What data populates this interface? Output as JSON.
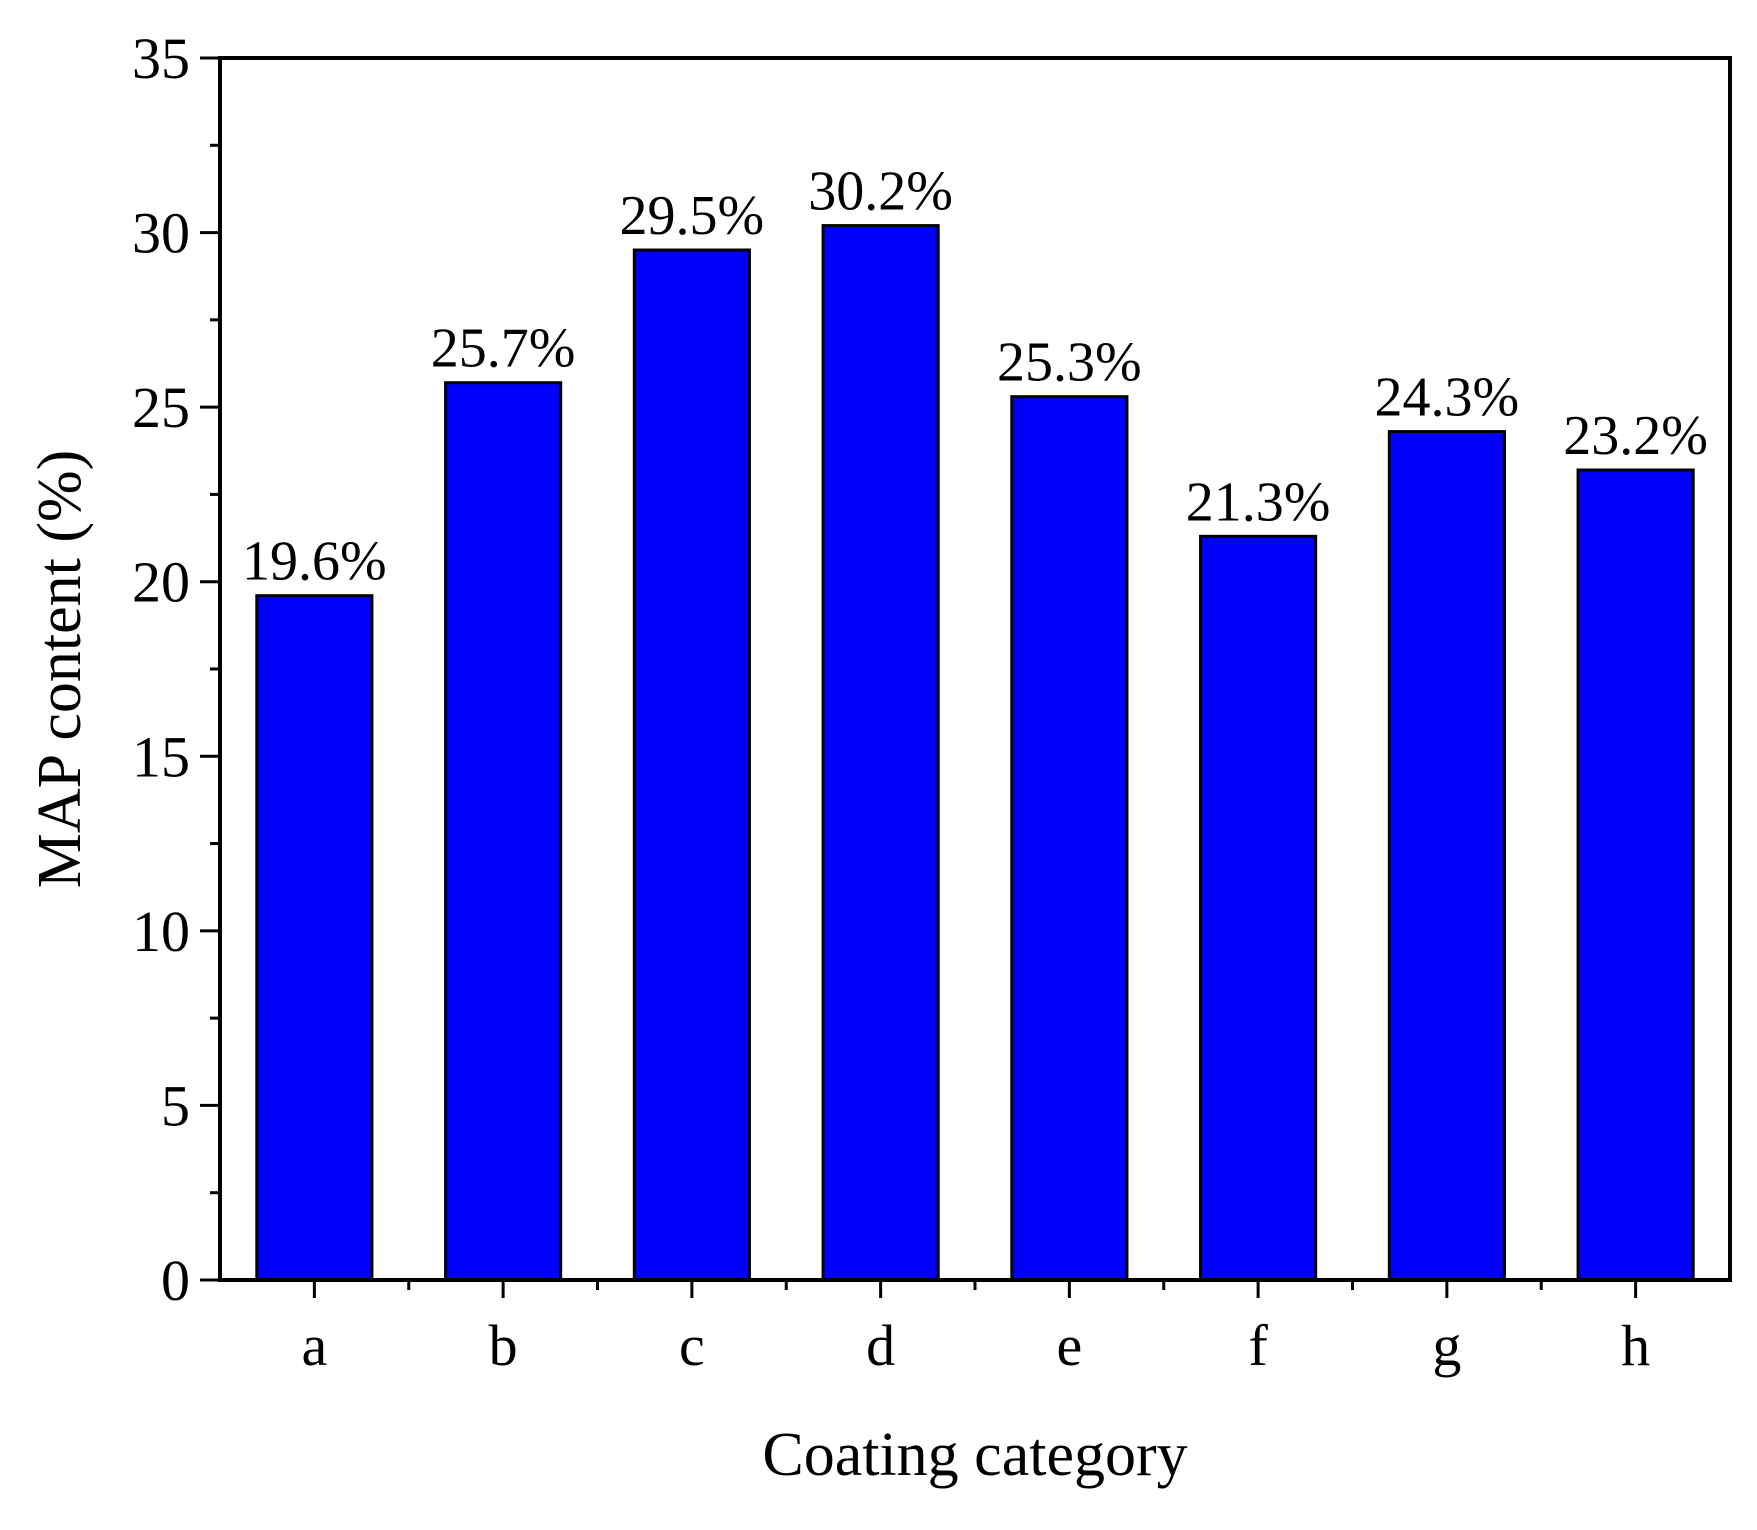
{
  "chart_data": {
    "type": "bar",
    "xlabel": "Coating category",
    "ylabel": "MAP content (%)",
    "categories": [
      "a",
      "b",
      "c",
      "d",
      "e",
      "f",
      "g",
      "h"
    ],
    "values": [
      19.6,
      25.7,
      29.5,
      30.2,
      25.3,
      21.3,
      24.3,
      23.2
    ],
    "data_labels": [
      "19.6%",
      "25.7%",
      "29.5%",
      "30.2%",
      "25.3%",
      "21.3%",
      "24.3%",
      "23.2%"
    ],
    "ylim": [
      0,
      35
    ],
    "yticks": [
      0,
      5,
      10,
      15,
      20,
      25,
      30,
      35
    ],
    "ytick_labels": [
      "0",
      "5",
      "10",
      "15",
      "20",
      "25",
      "30",
      "35"
    ],
    "grid": false,
    "legend": "none",
    "bar_color": "#0000FF",
    "bar_edge_color": "#000000"
  }
}
